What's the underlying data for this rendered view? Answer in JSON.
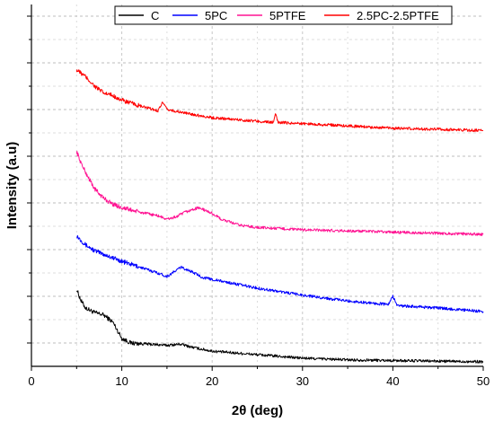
{
  "chart_data": {
    "type": "line",
    "title": "",
    "xlabel": "2θ (deg)",
    "ylabel": "Intensity (a.u)",
    "xlim": [
      0,
      50
    ],
    "ylim": [
      0,
      15.5
    ],
    "x_ticks": [
      0,
      10,
      20,
      30,
      40,
      50
    ],
    "x_tick_labels": [
      "0",
      "10",
      "20",
      "30",
      "40",
      "50"
    ],
    "y_ticks_unlabeled": [
      1,
      2,
      3,
      4,
      5,
      6,
      7,
      8,
      9,
      10,
      11,
      12,
      13,
      14,
      15
    ],
    "grid": true,
    "legend_position": "top-right",
    "series": [
      {
        "name": "C",
        "color": "#000000",
        "noise": 0.12,
        "points": [
          [
            5,
            3.3
          ],
          [
            5.5,
            2.8
          ],
          [
            6,
            2.5
          ],
          [
            7,
            2.3
          ],
          [
            8,
            2.2
          ],
          [
            9,
            1.9
          ],
          [
            10,
            1.2
          ],
          [
            11,
            1.0
          ],
          [
            13,
            0.95
          ],
          [
            15,
            0.9
          ],
          [
            16.5,
            0.95
          ],
          [
            18,
            0.8
          ],
          [
            20,
            0.65
          ],
          [
            25,
            0.5
          ],
          [
            30,
            0.35
          ],
          [
            35,
            0.28
          ],
          [
            40,
            0.25
          ],
          [
            45,
            0.22
          ],
          [
            50,
            0.2
          ]
        ]
      },
      {
        "name": "5PC",
        "color": "#0000ff",
        "noise": 0.12,
        "points": [
          [
            5,
            5.6
          ],
          [
            6,
            5.2
          ],
          [
            7,
            4.95
          ],
          [
            8,
            4.8
          ],
          [
            9,
            4.65
          ],
          [
            10,
            4.5
          ],
          [
            12,
            4.25
          ],
          [
            14,
            4.0
          ],
          [
            15,
            3.85
          ],
          [
            16,
            4.1
          ],
          [
            16.5,
            4.25
          ],
          [
            17.5,
            4.1
          ],
          [
            19,
            3.8
          ],
          [
            21,
            3.65
          ],
          [
            25,
            3.35
          ],
          [
            30,
            3.05
          ],
          [
            35,
            2.8
          ],
          [
            39.5,
            2.65
          ],
          [
            40,
            3.0
          ],
          [
            40.5,
            2.6
          ],
          [
            45,
            2.5
          ],
          [
            50,
            2.35
          ]
        ]
      },
      {
        "name": "5PTFE",
        "color": "#ff1493",
        "noise": 0.12,
        "points": [
          [
            5,
            9.2
          ],
          [
            5.5,
            8.7
          ],
          [
            6,
            8.3
          ],
          [
            7,
            7.6
          ],
          [
            8,
            7.2
          ],
          [
            9,
            6.95
          ],
          [
            10,
            6.8
          ],
          [
            12,
            6.6
          ],
          [
            14,
            6.45
          ],
          [
            15,
            6.3
          ],
          [
            16,
            6.4
          ],
          [
            17,
            6.6
          ],
          [
            18.5,
            6.8
          ],
          [
            20,
            6.55
          ],
          [
            21,
            6.3
          ],
          [
            23,
            6.05
          ],
          [
            25,
            5.95
          ],
          [
            30,
            5.85
          ],
          [
            35,
            5.8
          ],
          [
            40,
            5.75
          ],
          [
            45,
            5.7
          ],
          [
            50,
            5.65
          ]
        ]
      },
      {
        "name": "2.5PC-2.5PTFE",
        "color": "#ff0000",
        "noise": 0.12,
        "points": [
          [
            5,
            12.7
          ],
          [
            6,
            12.4
          ],
          [
            7,
            12.0
          ],
          [
            8,
            11.7
          ],
          [
            9,
            11.6
          ],
          [
            10,
            11.4
          ],
          [
            12,
            11.15
          ],
          [
            14,
            10.95
          ],
          [
            14.5,
            11.3
          ],
          [
            15,
            11.0
          ],
          [
            17,
            10.85
          ],
          [
            20,
            10.65
          ],
          [
            25,
            10.5
          ],
          [
            26.8,
            10.45
          ],
          [
            27,
            10.8
          ],
          [
            27.3,
            10.45
          ],
          [
            30,
            10.4
          ],
          [
            35,
            10.3
          ],
          [
            40,
            10.2
          ],
          [
            45,
            10.15
          ],
          [
            50,
            10.1
          ]
        ]
      }
    ]
  }
}
